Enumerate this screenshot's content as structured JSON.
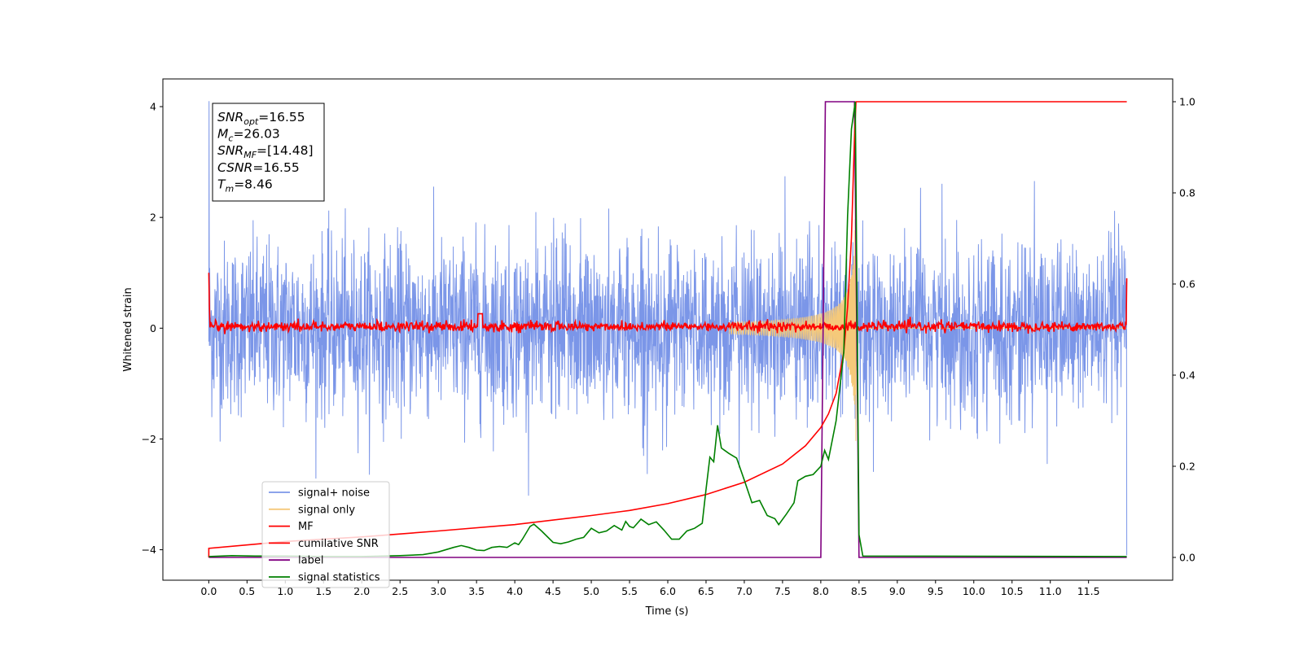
{
  "chart_data": {
    "type": "line",
    "xlabel": "Time (s)",
    "ylabel": "Whitened strain",
    "xlim": [
      -0.6,
      12.6
    ],
    "ylim_left": [
      -4.55,
      4.5
    ],
    "ylim_right": [
      -0.05,
      1.05
    ],
    "x_ticks": [
      "0.0",
      "0.5",
      "1.0",
      "1.5",
      "2.0",
      "2.5",
      "3.0",
      "3.5",
      "4.0",
      "4.5",
      "5.0",
      "5.5",
      "6.0",
      "6.5",
      "7.0",
      "7.5",
      "8.0",
      "8.5",
      "9.0",
      "9.5",
      "10.0",
      "10.5",
      "11.0",
      "11.5"
    ],
    "y_ticks_left": [
      "4",
      "2",
      "0",
      "−2",
      "−4"
    ],
    "y_ticks_right": [
      "1.0",
      "0.8",
      "0.6",
      "0.4",
      "0.2",
      "0.0"
    ],
    "grid": false,
    "legend_position": "lower-left",
    "annotation": {
      "lines": [
        {
          "main": "SNR",
          "sub": "opt",
          "rest": "=16.55"
        },
        {
          "main": "M",
          "sub": "c",
          "rest": "=26.03"
        },
        {
          "main": "SNR",
          "sub": "MF",
          "rest": "=[14.48]"
        },
        {
          "main": "CSNR",
          "sub": "",
          "rest": "=16.55"
        },
        {
          "main": "T",
          "sub": "m",
          "rest": "=8.46"
        }
      ]
    },
    "series": [
      {
        "name": "signal+ noise",
        "color": "#7b96e8",
        "axis": "left",
        "description_amplitude": 1.55,
        "x_range": [
          0.0,
          12.0
        ]
      },
      {
        "name": "signal only",
        "color": "#f5c97a",
        "axis": "left",
        "merger_time": 8.46,
        "peak_amplitude": 2.9
      },
      {
        "name": "MF",
        "color": "#ff0000",
        "axis": "left",
        "x_range": [
          0.0,
          12.0
        ]
      },
      {
        "name": "cumilative SNR",
        "color": "#ff0000",
        "axis": "right",
        "points": [
          [
            0.0,
            0.0
          ],
          [
            0.0,
            0.02
          ],
          [
            1.0,
            0.035
          ],
          [
            2.0,
            0.045
          ],
          [
            3.0,
            0.058
          ],
          [
            4.0,
            0.072
          ],
          [
            5.0,
            0.092
          ],
          [
            5.5,
            0.103
          ],
          [
            6.0,
            0.118
          ],
          [
            6.5,
            0.138
          ],
          [
            7.0,
            0.165
          ],
          [
            7.5,
            0.205
          ],
          [
            7.8,
            0.245
          ],
          [
            8.0,
            0.285
          ],
          [
            8.1,
            0.315
          ],
          [
            8.2,
            0.36
          ],
          [
            8.3,
            0.45
          ],
          [
            8.35,
            0.55
          ],
          [
            8.4,
            0.7
          ],
          [
            8.44,
            0.92
          ],
          [
            8.46,
            1.0
          ],
          [
            12.0,
            1.0
          ]
        ]
      },
      {
        "name": "label",
        "color": "#800080",
        "axis": "right",
        "points": [
          [
            0.0,
            0.0
          ],
          [
            8.0,
            0.0
          ],
          [
            8.06,
            1.0
          ],
          [
            8.44,
            1.0
          ],
          [
            8.5,
            0.0
          ],
          [
            12.0,
            0.0
          ]
        ]
      },
      {
        "name": "signal statistics",
        "color": "#008000",
        "axis": "right",
        "points": [
          [
            0.0,
            0.002
          ],
          [
            0.3,
            0.004
          ],
          [
            0.6,
            0.003
          ],
          [
            1.0,
            0.003
          ],
          [
            1.5,
            0.002
          ],
          [
            2.0,
            0.002
          ],
          [
            2.5,
            0.004
          ],
          [
            2.8,
            0.006
          ],
          [
            3.0,
            0.012
          ],
          [
            3.2,
            0.022
          ],
          [
            3.3,
            0.026
          ],
          [
            3.4,
            0.022
          ],
          [
            3.5,
            0.016
          ],
          [
            3.6,
            0.015
          ],
          [
            3.7,
            0.022
          ],
          [
            3.8,
            0.024
          ],
          [
            3.9,
            0.022
          ],
          [
            4.0,
            0.032
          ],
          [
            4.05,
            0.028
          ],
          [
            4.1,
            0.04
          ],
          [
            4.2,
            0.068
          ],
          [
            4.25,
            0.073
          ],
          [
            4.35,
            0.058
          ],
          [
            4.5,
            0.033
          ],
          [
            4.6,
            0.03
          ],
          [
            4.7,
            0.034
          ],
          [
            4.8,
            0.04
          ],
          [
            4.9,
            0.044
          ],
          [
            5.0,
            0.064
          ],
          [
            5.1,
            0.054
          ],
          [
            5.2,
            0.058
          ],
          [
            5.3,
            0.07
          ],
          [
            5.4,
            0.06
          ],
          [
            5.45,
            0.079
          ],
          [
            5.5,
            0.068
          ],
          [
            5.55,
            0.065
          ],
          [
            5.65,
            0.084
          ],
          [
            5.75,
            0.072
          ],
          [
            5.85,
            0.078
          ],
          [
            5.95,
            0.06
          ],
          [
            6.05,
            0.04
          ],
          [
            6.15,
            0.04
          ],
          [
            6.25,
            0.058
          ],
          [
            6.35,
            0.064
          ],
          [
            6.45,
            0.075
          ],
          [
            6.5,
            0.15
          ],
          [
            6.55,
            0.22
          ],
          [
            6.6,
            0.21
          ],
          [
            6.65,
            0.29
          ],
          [
            6.7,
            0.24
          ],
          [
            6.8,
            0.228
          ],
          [
            6.9,
            0.218
          ],
          [
            7.0,
            0.17
          ],
          [
            7.1,
            0.12
          ],
          [
            7.2,
            0.125
          ],
          [
            7.3,
            0.092
          ],
          [
            7.4,
            0.085
          ],
          [
            7.45,
            0.072
          ],
          [
            7.55,
            0.095
          ],
          [
            7.65,
            0.12
          ],
          [
            7.7,
            0.168
          ],
          [
            7.8,
            0.178
          ],
          [
            7.9,
            0.182
          ],
          [
            8.0,
            0.2
          ],
          [
            8.05,
            0.235
          ],
          [
            8.1,
            0.215
          ],
          [
            8.2,
            0.3
          ],
          [
            8.3,
            0.45
          ],
          [
            8.35,
            0.75
          ],
          [
            8.4,
            0.94
          ],
          [
            8.45,
            1.0
          ],
          [
            8.5,
            0.05
          ],
          [
            8.55,
            0.003
          ],
          [
            12.0,
            0.002
          ]
        ]
      }
    ]
  }
}
